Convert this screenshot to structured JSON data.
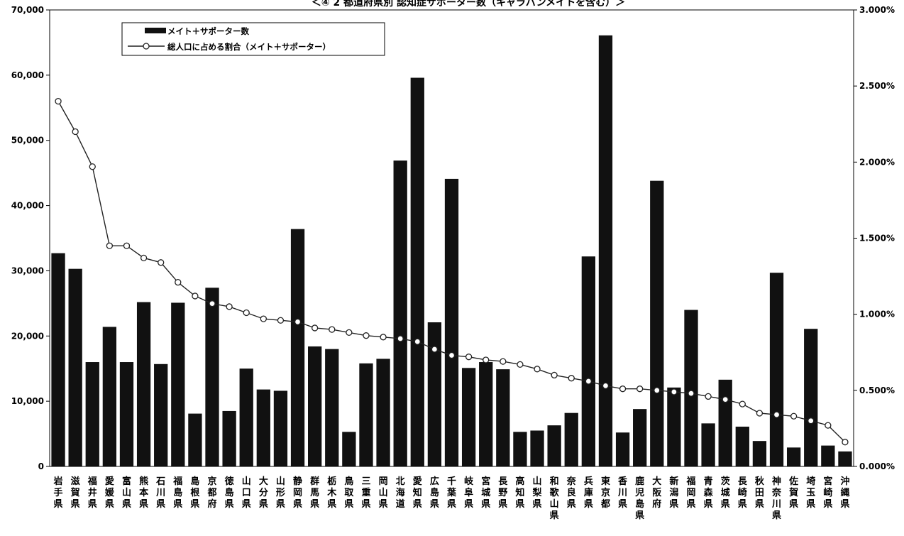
{
  "chart_data": {
    "type": "bar",
    "title": "＜④ 2  都道府県別  認知症サポーター数（キャラバンメイトを含む）＞",
    "categories": [
      "岩手県",
      "滋賀県",
      "福井県",
      "愛媛県",
      "富山県",
      "熊本県",
      "石川県",
      "福島県",
      "島根県",
      "京都府",
      "徳島県",
      "山口県",
      "大分県",
      "山形県",
      "静岡県",
      "群馬県",
      "栃木県",
      "鳥取県",
      "三重県",
      "岡山県",
      "北海道",
      "愛知県",
      "広島県",
      "千葉県",
      "岐阜県",
      "宮城県",
      "長野県",
      "高知県",
      "山梨県",
      "和歌山県",
      "奈良県",
      "兵庫県",
      "東京都",
      "香川県",
      "鹿児島県",
      "大阪府",
      "新潟県",
      "福岡県",
      "青森県",
      "茨城県",
      "長崎県",
      "秋田県",
      "神奈川県",
      "佐賀県",
      "埼玉県",
      "宮崎県",
      "沖縄県"
    ],
    "series": [
      {
        "name": "メイト＋サポーター数",
        "axis": "left",
        "values": [
          32700,
          30300,
          16000,
          21400,
          16000,
          25200,
          15700,
          25100,
          8100,
          27400,
          8500,
          15000,
          11800,
          11600,
          36400,
          18400,
          18000,
          5300,
          15800,
          16500,
          46900,
          59600,
          22100,
          44100,
          15100,
          16000,
          14900,
          5300,
          5500,
          6300,
          8200,
          32200,
          66100,
          5200,
          8800,
          43800,
          12100,
          24000,
          6600,
          13300,
          6100,
          3900,
          29700,
          2900,
          21100,
          3200,
          2300
        ]
      },
      {
        "name": "総人口に占める割合（メイト＋サポーター）",
        "axis": "right",
        "values": [
          2.4,
          2.2,
          1.97,
          1.45,
          1.45,
          1.37,
          1.34,
          1.21,
          1.12,
          1.07,
          1.05,
          1.01,
          0.97,
          0.96,
          0.95,
          0.91,
          0.9,
          0.88,
          0.86,
          0.85,
          0.84,
          0.82,
          0.77,
          0.73,
          0.72,
          0.7,
          0.69,
          0.67,
          0.64,
          0.6,
          0.58,
          0.56,
          0.53,
          0.51,
          0.51,
          0.5,
          0.49,
          0.48,
          0.46,
          0.44,
          0.41,
          0.35,
          0.34,
          0.33,
          0.3,
          0.27,
          0.16
        ]
      }
    ],
    "ylim": [
      0,
      70000
    ],
    "y_ticks": [
      "0",
      "10,000",
      "20,000",
      "30,000",
      "40,000",
      "50,000",
      "60,000",
      "70,000"
    ],
    "y2lim": [
      0,
      3.0
    ],
    "y2_ticks": [
      "0.000%",
      "0.500%",
      "1.000%",
      "1.500%",
      "2.000%",
      "2.500%",
      "3.000%"
    ],
    "legend_position": "top-left",
    "colors": {
      "bar": "#111111",
      "line": "#222222",
      "marker_fill": "#ffffff"
    }
  }
}
